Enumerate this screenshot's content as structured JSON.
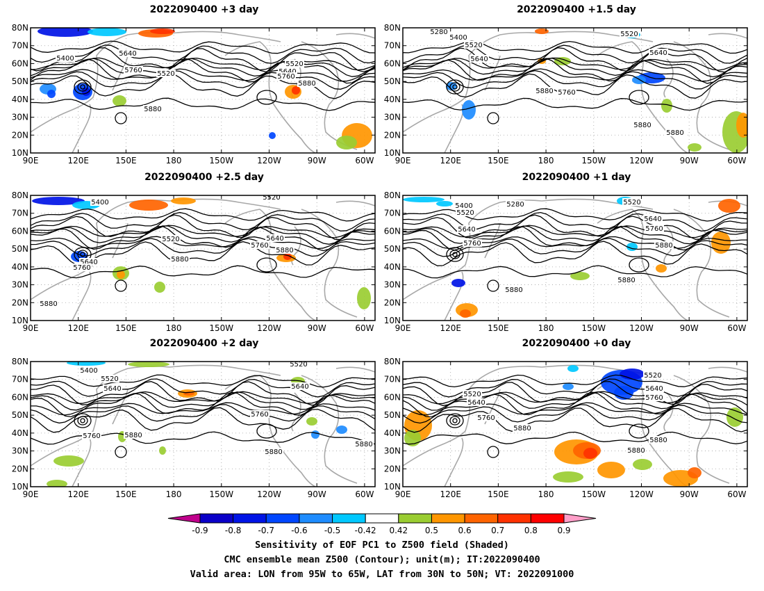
{
  "panels": [
    {
      "title": "2022090400 +3 day"
    },
    {
      "title": "2022090400 +1.5 day"
    },
    {
      "title": "2022090400 +2.5 day"
    },
    {
      "title": "2022090400 +1 day"
    },
    {
      "title": "2022090400 +2 day"
    },
    {
      "title": "2022090400 +0 day"
    }
  ],
  "axes": {
    "lon_ticks": [
      "90E",
      "120E",
      "150E",
      "180",
      "150W",
      "120W",
      "90W",
      "60W"
    ],
    "lat_ticks": [
      "80N",
      "70N",
      "60N",
      "50N",
      "40N",
      "30N",
      "20N",
      "10N"
    ]
  },
  "contour_labels": [
    [
      "5400",
      "5640",
      "5760",
      "5520",
      "5520",
      "5640",
      "5760",
      "5880",
      "5880"
    ],
    [
      "5280",
      "5400",
      "5520",
      "5640",
      "5520",
      "5640",
      "5880",
      "5760",
      "5880",
      "5880"
    ],
    [
      "5400",
      "5520",
      "5520",
      "5640",
      "5760",
      "5880",
      "5640",
      "5760",
      "5880",
      "5880"
    ],
    [
      "5400",
      "5520",
      "5280",
      "5520",
      "5640",
      "5760",
      "5640",
      "5760",
      "5880",
      "5880",
      "5880"
    ],
    [
      "5400",
      "5520",
      "5640",
      "5520",
      "5640",
      "5760",
      "5760",
      "5880",
      "5880",
      "5880"
    ],
    [
      "5520",
      "5520",
      "5640",
      "5640",
      "5760",
      "5760",
      "5880",
      "5880",
      "5880"
    ]
  ],
  "colorbar": {
    "labels": [
      "-0.9",
      "-0.8",
      "-0.7",
      "-0.6",
      "-0.5",
      "-0.42",
      "0.42",
      "0.5",
      "0.6",
      "0.7",
      "0.8",
      "0.9"
    ],
    "colors": [
      "#c0008c",
      "#0a00c8",
      "#0014e6",
      "#0046ff",
      "#1e8cff",
      "#00c8ff",
      "#ffffff",
      "#9acd32",
      "#ff9600",
      "#ff6400",
      "#ff3200",
      "#ff0000",
      "#ff9ec8"
    ]
  },
  "caption": [
    "Sensitivity of EOF PC1 to Z500 field (Shaded)",
    "CMC ensemble mean Z500 (Contour); unit(m); IT:2022090400",
    "Valid area: LON from 95W to 65W, LAT from 30N to 50N; VT: 2022091000"
  ]
}
